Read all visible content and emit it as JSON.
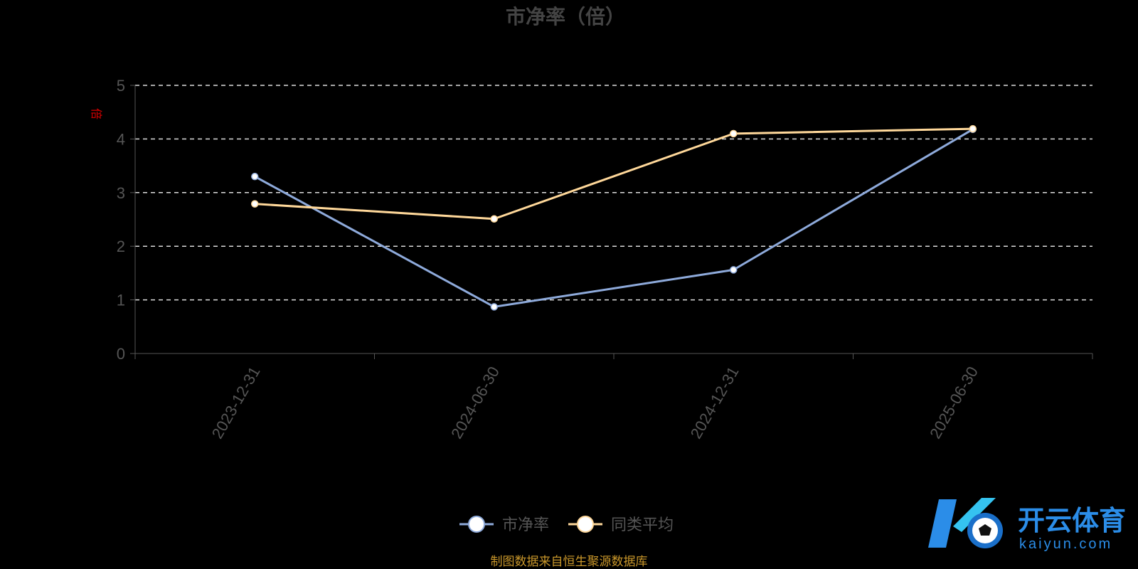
{
  "chart_data": {
    "type": "line",
    "title": "市净率（倍）",
    "ylabel": "倍",
    "categories": [
      "2023-12-31",
      "2024-06-30",
      "2024-12-31",
      "2025-06-30"
    ],
    "ylim": [
      0,
      5
    ],
    "yticks": [
      0,
      1,
      2,
      3,
      4,
      5
    ],
    "grid": true,
    "legend_position": "bottom",
    "series": [
      {
        "name": "市净率",
        "values": [
          3.3,
          0.87,
          1.56,
          4.18
        ],
        "color": "#8eaadb"
      },
      {
        "name": "同类平均",
        "values": [
          2.79,
          2.51,
          4.1,
          4.19
        ],
        "color": "#ffd89a"
      }
    ]
  },
  "source_note": "制图数据来自恒生聚源数据库",
  "watermark": {
    "name": "开云体育",
    "domain": "kaiyun.com",
    "logo_icon": "k-soccer-ball-logo-icon"
  }
}
